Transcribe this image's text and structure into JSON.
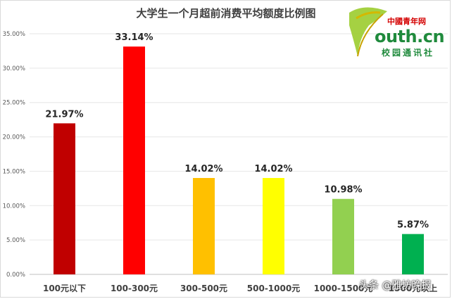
{
  "chart_data": {
    "type": "bar",
    "title": "大学生一个月超前消费平均额度比例图",
    "categories": [
      "100元以下",
      "100-300元",
      "300-500元",
      "500-1000元",
      "1000-1500元",
      "1500元以上"
    ],
    "values": [
      21.97,
      33.14,
      14.02,
      14.02,
      10.98,
      5.87
    ],
    "data_labels": [
      "21.97%",
      "33.14%",
      "14.02%",
      "14.02%",
      "10.98%",
      "5.87%"
    ],
    "bar_colors": [
      "#c00000",
      "#ff0000",
      "#ffc000",
      "#ffff00",
      "#92d050",
      "#00b050"
    ],
    "y_ticks": [
      "0.00%",
      "5.00%",
      "10.00%",
      "15.00%",
      "20.00%",
      "25.00%",
      "30.00%",
      "35.00%"
    ],
    "ylim": [
      0,
      35
    ],
    "grid": true,
    "legend": "none"
  },
  "logo": {
    "cn_text": "中國青年网",
    "site_text": "outh.cn",
    "sub_text": "校园通讯社"
  },
  "watermark": "头条 @雅坊晚报"
}
